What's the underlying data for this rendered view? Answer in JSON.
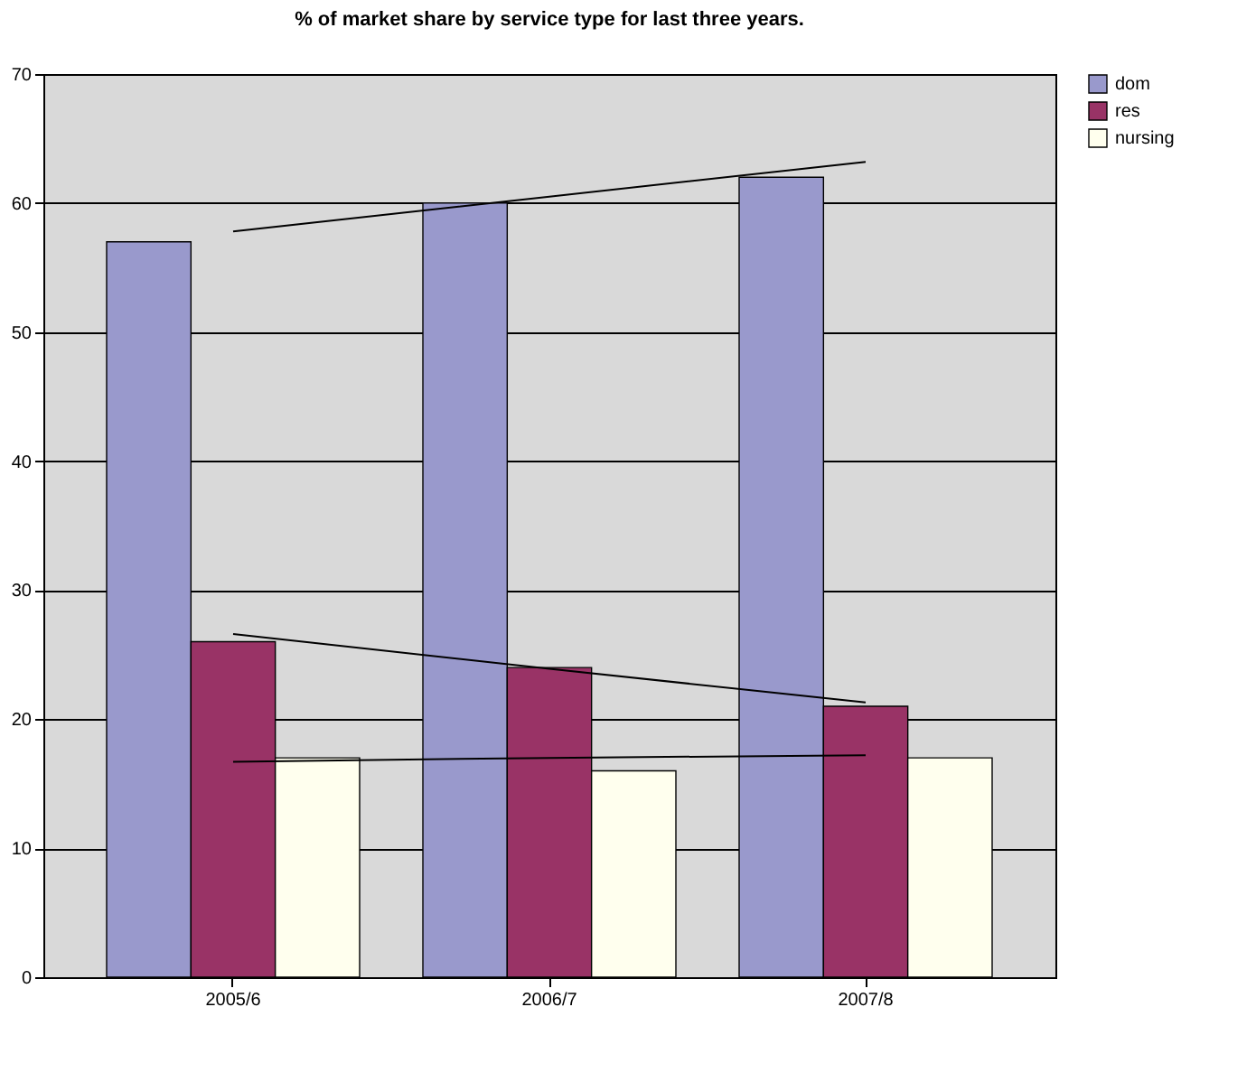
{
  "chart_data": {
    "type": "bar",
    "title": "% of market share by service type for last three years.",
    "categories": [
      "2005/6",
      "2006/7",
      "2007/8"
    ],
    "series": [
      {
        "name": "dom",
        "color": "#9999cc",
        "values": [
          57,
          60,
          62
        ]
      },
      {
        "name": "res",
        "color": "#993366",
        "values": [
          26,
          24,
          21
        ]
      },
      {
        "name": "nursing",
        "color": "#ffffee",
        "values": [
          17,
          16,
          17
        ]
      },
      {
        "type": "line",
        "color": "#000000",
        "values": [
          57.8,
          60.5,
          63.2
        ]
      },
      {
        "type": "line",
        "color": "#000000",
        "values": [
          26.6,
          23.9,
          21.3
        ]
      },
      {
        "type": "line",
        "color": "#000000",
        "values": [
          16.7,
          17.0,
          17.2
        ]
      }
    ],
    "ylim": [
      0,
      70
    ],
    "yticks": [
      0,
      10,
      20,
      30,
      40,
      50,
      60,
      70
    ],
    "grid": "y",
    "legend": "right"
  }
}
